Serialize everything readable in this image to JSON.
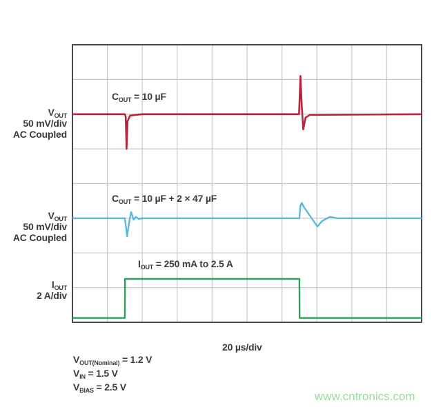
{
  "chart_data": {
    "type": "line",
    "xlabel": "20 µs/div",
    "x_unit": "µs",
    "xlim": [
      0,
      200
    ],
    "x_divisions": 10,
    "y_divisions": 8,
    "grid": true,
    "colors": {
      "grid": "#c9c9c9",
      "frame": "#474747",
      "red": "#b5263a",
      "blue": "#5ab8e0",
      "green": "#2ea05a"
    },
    "series": [
      {
        "key": "vout_10uF",
        "scale_per_div": 50,
        "unit": "mV",
        "channel_label": {
          "main": "V",
          "sub": "OUT",
          "line2": "50 mV/div",
          "line3": "AC Coupled"
        },
        "annotation": {
          "main": "C",
          "sub": "OUT",
          "rest": " = 10 µF"
        },
        "color": "#b5263a",
        "points": [
          [
            0,
            0
          ],
          [
            30,
            0
          ],
          [
            30.5,
            -4
          ],
          [
            31,
            -50
          ],
          [
            31.6,
            -10
          ],
          [
            33,
            -2
          ],
          [
            40,
            0
          ],
          [
            129.8,
            0
          ],
          [
            130.6,
            55
          ],
          [
            131.4,
            10
          ],
          [
            132.2,
            -22
          ],
          [
            133.5,
            -5
          ],
          [
            136,
            -1
          ],
          [
            200,
            0
          ]
        ]
      },
      {
        "key": "vout_10uF_2x47uF",
        "scale_per_div": 50,
        "unit": "mV",
        "channel_label": {
          "main": "V",
          "sub": "OUT",
          "line2": "50 mV/div",
          "line3": "AC Coupled"
        },
        "annotation": {
          "main": "C",
          "sub": "OUT",
          "rest": " = 10 µF + 2 × 47 µF"
        },
        "color": "#5ab8e0",
        "points": [
          [
            0,
            0
          ],
          [
            30,
            0
          ],
          [
            30.8,
            -15
          ],
          [
            31.3,
            -26
          ],
          [
            32.2,
            -10
          ],
          [
            33.6,
            9
          ],
          [
            35,
            -2
          ],
          [
            36.4,
            2
          ],
          [
            38,
            -1
          ],
          [
            40,
            0
          ],
          [
            130,
            0
          ],
          [
            130.6,
            18
          ],
          [
            131.4,
            22
          ],
          [
            132.6,
            16
          ],
          [
            140.3,
            -12
          ],
          [
            143,
            -4
          ],
          [
            147.4,
            2
          ],
          [
            152,
            0
          ],
          [
            200,
            0
          ]
        ]
      },
      {
        "key": "iout",
        "scale_per_div": 2,
        "unit": "A",
        "channel_label": {
          "main": "I",
          "sub": "OUT",
          "line2": "2 A/div"
        },
        "annotation": {
          "main": "I",
          "sub": "OUT",
          "rest": " = 250 mA to 2.5 A"
        },
        "color": "#2ea05a",
        "points": [
          [
            0,
            0.25
          ],
          [
            30,
            0.25
          ],
          [
            30.1,
            2.5
          ],
          [
            130,
            2.5
          ],
          [
            130.1,
            0.25
          ],
          [
            200,
            0.25
          ]
        ]
      }
    ]
  },
  "conditions": [
    {
      "main": "V",
      "sub": "OUT(Nominal)",
      "rest": " = 1.2 V"
    },
    {
      "main": "V",
      "sub": "IN",
      "rest": " = 1.5 V"
    },
    {
      "main": "V",
      "sub": "BIAS",
      "rest": " = 2.5 V"
    }
  ],
  "watermark": "www.cntronics.com"
}
